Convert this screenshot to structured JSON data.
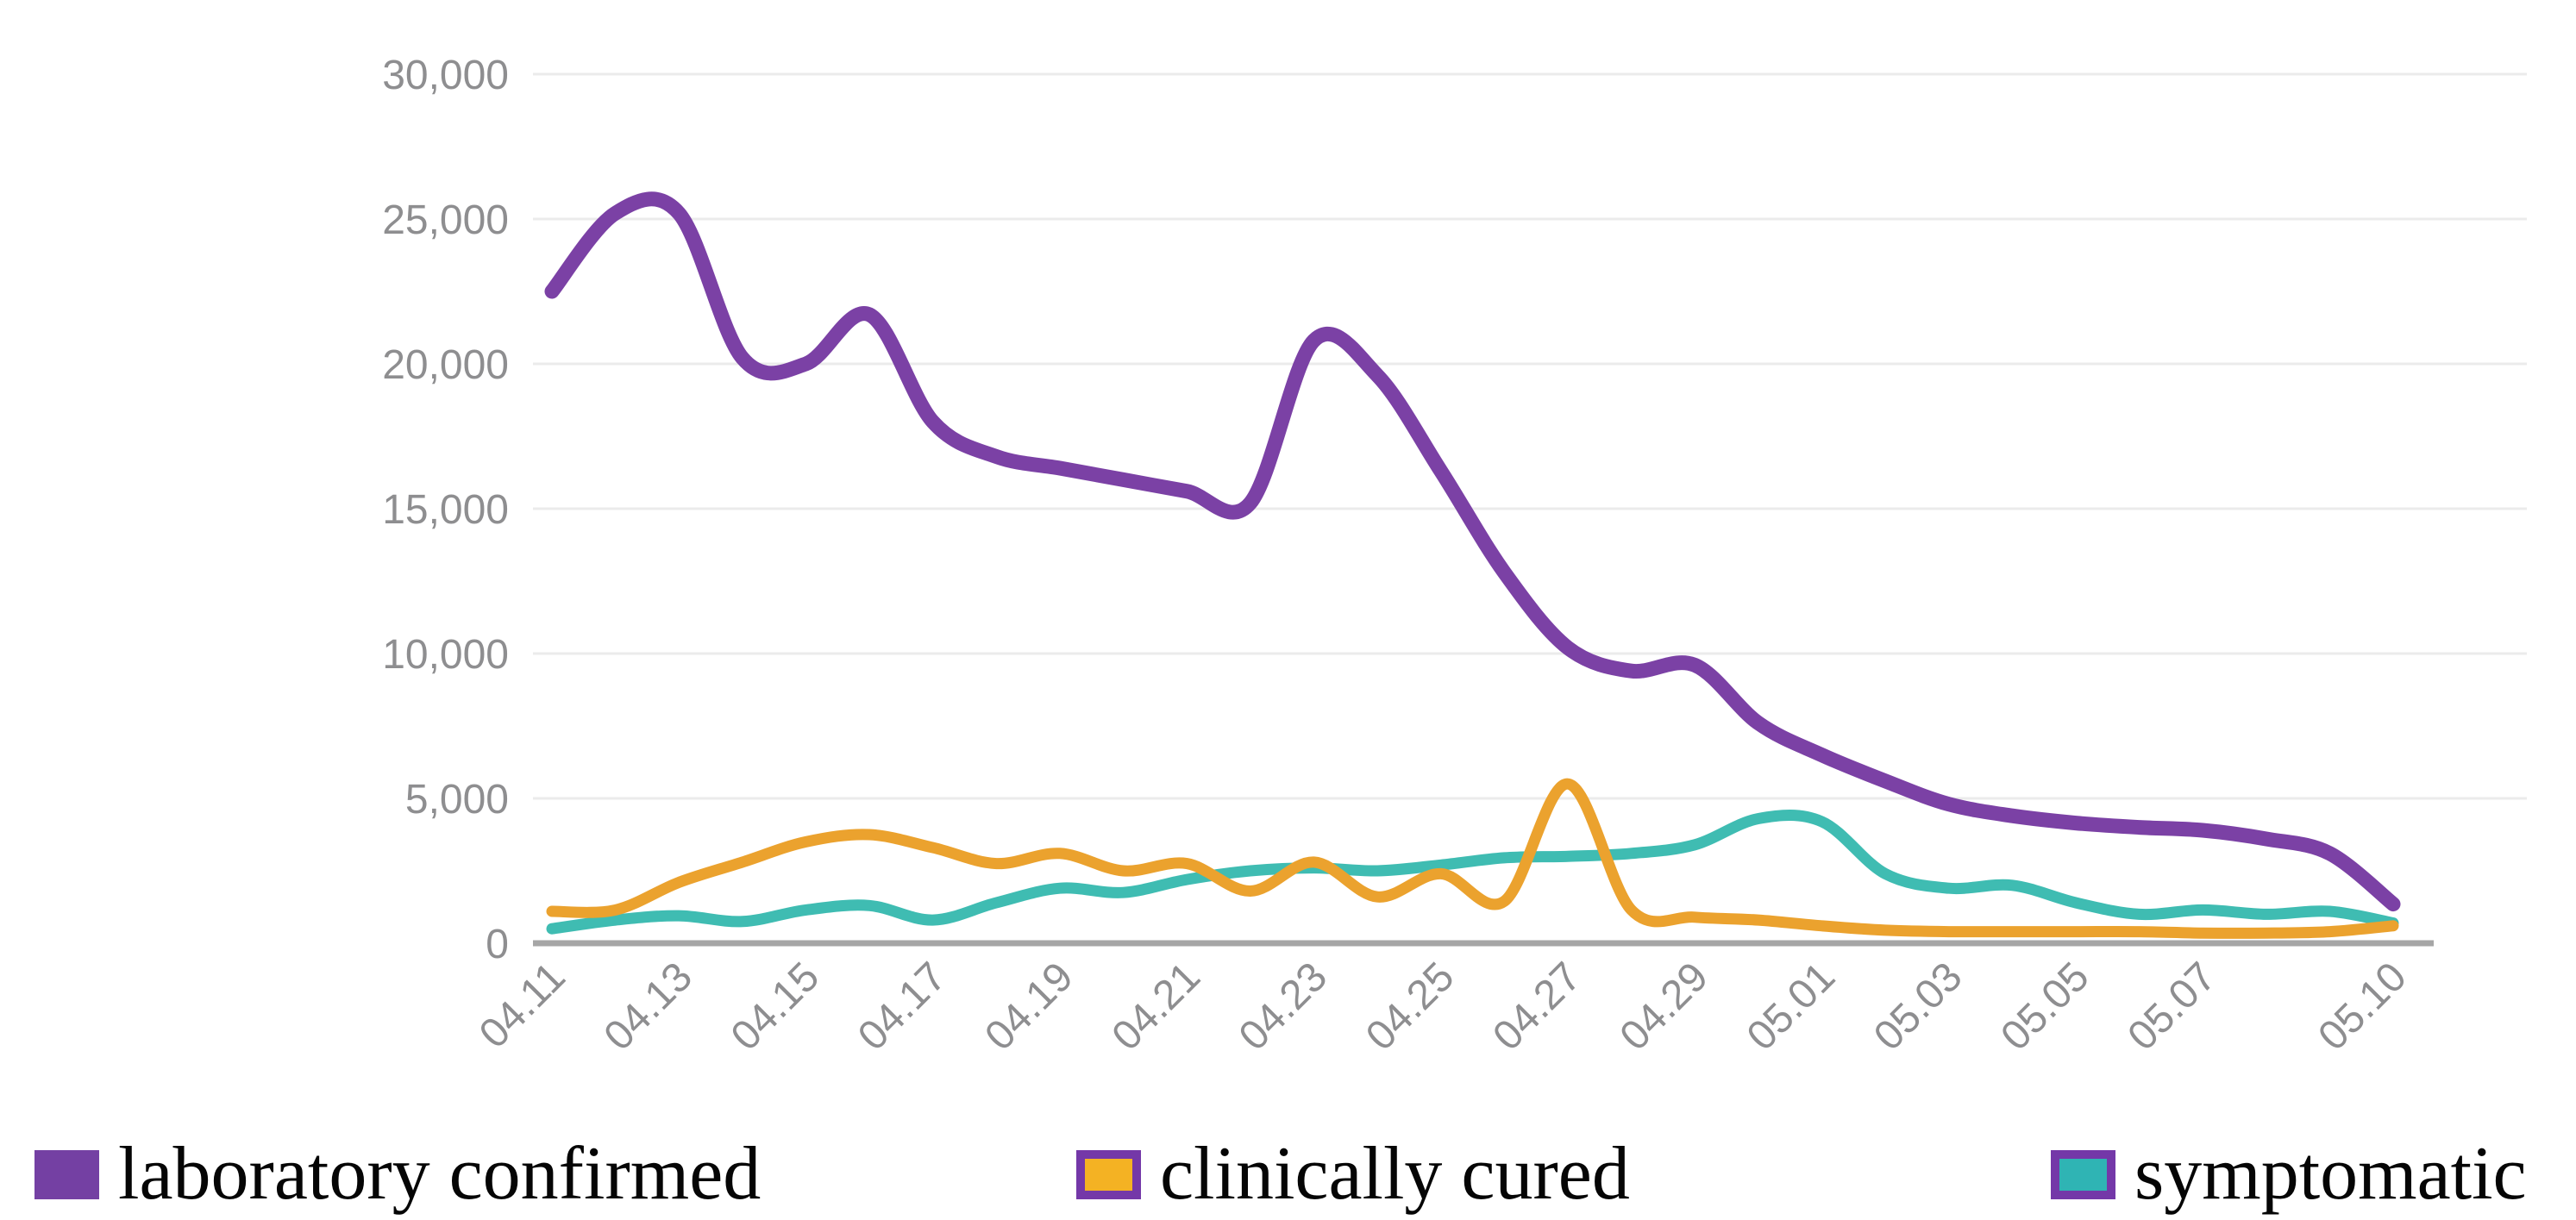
{
  "chart_data": {
    "type": "line",
    "title": "",
    "xlabel": "",
    "ylabel": "",
    "x": [
      "04.11",
      "04.12",
      "04.13",
      "04.14",
      "04.15",
      "04.16",
      "04.17",
      "04.18",
      "04.19",
      "04.20",
      "04.21",
      "04.22",
      "04.23",
      "04.24",
      "04.25",
      "04.26",
      "04.27",
      "04.28",
      "04.29",
      "04.30",
      "05.01",
      "05.02",
      "05.03",
      "05.04",
      "05.05",
      "05.06",
      "05.07",
      "05.08",
      "05.09",
      "05.10"
    ],
    "x_tick_labels": [
      "04.11",
      "04.13",
      "04.15",
      "04.17",
      "04.19",
      "04.21",
      "04.23",
      "04.25",
      "04.27",
      "04.29",
      "05.01",
      "05.03",
      "05.05",
      "05.07",
      "05.10"
    ],
    "x_tick_indices": [
      0,
      2,
      4,
      6,
      8,
      10,
      12,
      14,
      16,
      18,
      20,
      22,
      24,
      26,
      29
    ],
    "ylim": [
      0,
      30000
    ],
    "y_tick_values": [
      0,
      5000,
      10000,
      15000,
      20000,
      25000,
      30000
    ],
    "y_tick_labels": [
      "0",
      "5,000",
      "10,000",
      "15,000",
      "20,000",
      "25,000",
      "30,000"
    ],
    "grid": "horizontal",
    "legend_position": "bottom",
    "series": [
      {
        "name": "laboratory confirmed",
        "color": "#7B41A5",
        "values": [
          22500,
          25200,
          25200,
          20200,
          20000,
          21700,
          18000,
          16800,
          16400,
          16000,
          15600,
          15200,
          20800,
          19600,
          16300,
          12800,
          10200,
          9400,
          9600,
          7600,
          6500,
          5600,
          4800,
          4400,
          4150,
          4000,
          3900,
          3600,
          3100,
          1350
        ]
      },
      {
        "name": "clinically cured",
        "color": "#EBA22E",
        "values": [
          1100,
          1150,
          2100,
          2800,
          3500,
          3750,
          3300,
          2750,
          3100,
          2500,
          2750,
          1800,
          2800,
          1600,
          2400,
          1450,
          5500,
          1150,
          900,
          800,
          600,
          450,
          400,
          400,
          400,
          400,
          350,
          350,
          400,
          600
        ]
      },
      {
        "name": "symptomatic",
        "color": "#3FBCB2",
        "values": [
          500,
          800,
          950,
          750,
          1150,
          1300,
          800,
          1400,
          1900,
          1750,
          2200,
          2500,
          2600,
          2500,
          2700,
          2950,
          3000,
          3100,
          3400,
          4300,
          4200,
          2400,
          1900,
          2000,
          1400,
          1000,
          1150,
          1000,
          1100,
          700
        ]
      }
    ]
  },
  "legend": {
    "items": [
      {
        "label": "laboratory confirmed",
        "swatch_fill": "#7440A3",
        "swatch_border": "#7440A3"
      },
      {
        "label": "clinically cured",
        "swatch_fill": "#F4B223",
        "swatch_border": "#7438A8"
      },
      {
        "label": "symptomatic",
        "swatch_fill": "#2FB4B4",
        "swatch_border": "#7438A8"
      }
    ]
  },
  "style": {
    "axis_text_color": "#8E8E90",
    "gridline_color": "#EBEBEB",
    "axis_line_color": "#A6A6A6",
    "background": "#FFFFFF"
  }
}
